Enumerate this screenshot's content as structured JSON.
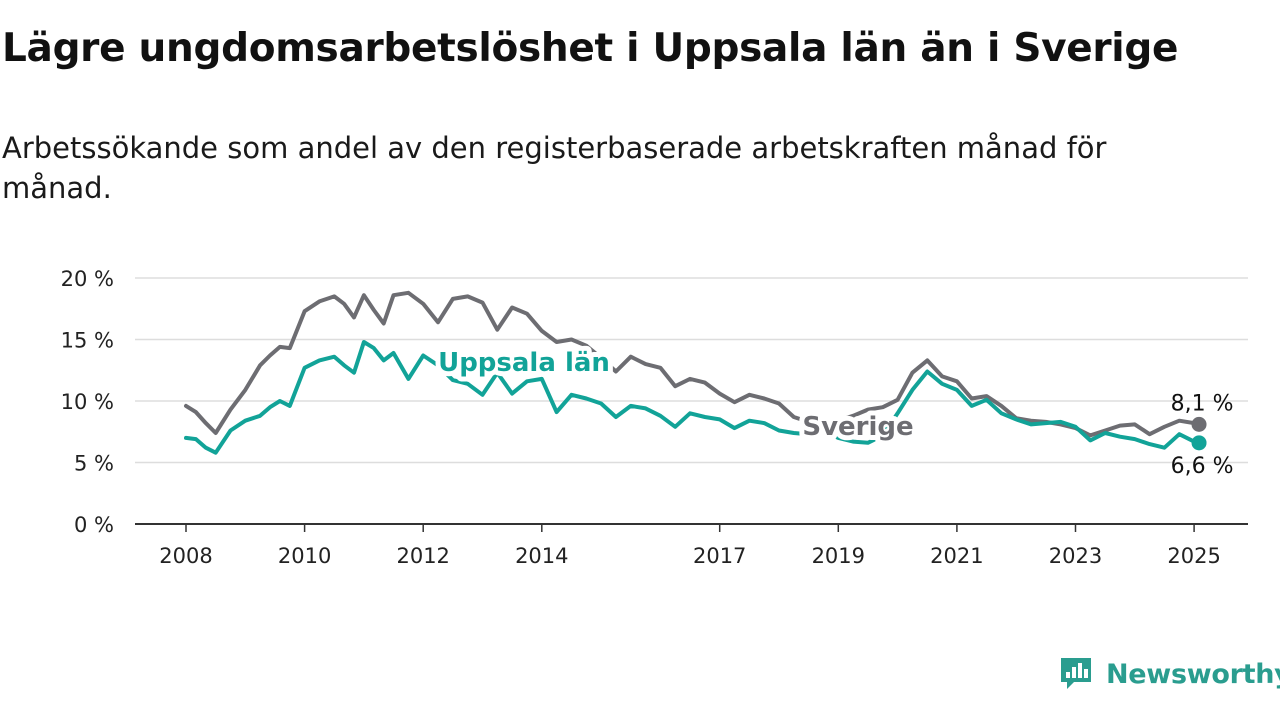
{
  "title": "Lägre ungdomsarbetslöshet i Uppsala län än i Sverige",
  "subtitle": "Arbetssökande som andel av den registerbaserade arbetskraften månad för månad.",
  "brand": {
    "name": "Newsworthy",
    "color": "#2a9d8f"
  },
  "colors": {
    "sverige": "#6d6d72",
    "uppsala": "#12a398",
    "grid": "#dddddd",
    "axis": "#333333"
  },
  "chart_data": {
    "type": "line",
    "title": "Lägre ungdomsarbetslöshet i Uppsala län än i Sverige",
    "xlabel": "",
    "ylabel": "",
    "ylim": [
      0,
      20
    ],
    "y_ticks": [
      0,
      5,
      10,
      15,
      20
    ],
    "y_tick_labels": [
      "0 %",
      "5 %",
      "10 %",
      "15 %",
      "20 %"
    ],
    "x_ticks": [
      2008,
      2010,
      2012,
      2014,
      2017,
      2019,
      2021,
      2023,
      2025
    ],
    "x_tick_labels": [
      "2008",
      "2010",
      "2012",
      "2014",
      "2017",
      "2019",
      "2021",
      "2023",
      "2025"
    ],
    "grid": true,
    "legend": "inline labels",
    "series": [
      {
        "name": "Sverige",
        "color": "#6d6d72",
        "end_label": "8,1 %",
        "x": [
          "2008-01",
          "2008-03",
          "2008-05",
          "2008-07",
          "2008-10",
          "2009-01",
          "2009-04",
          "2009-06",
          "2009-08",
          "2009-10",
          "2010-01",
          "2010-04",
          "2010-07",
          "2010-09",
          "2010-11",
          "2011-01",
          "2011-03",
          "2011-05",
          "2011-07",
          "2011-10",
          "2012-01",
          "2012-04",
          "2012-07",
          "2012-10",
          "2013-01",
          "2013-04",
          "2013-07",
          "2013-10",
          "2014-01",
          "2014-04",
          "2014-07",
          "2014-10",
          "2015-01",
          "2015-04",
          "2015-07",
          "2015-10",
          "2016-01",
          "2016-04",
          "2016-07",
          "2016-10",
          "2017-01",
          "2017-04",
          "2017-07",
          "2017-10",
          "2018-01",
          "2018-04",
          "2018-07",
          "2018-10",
          "2019-01",
          "2019-04",
          "2019-07",
          "2019-10",
          "2020-01",
          "2020-04",
          "2020-07",
          "2020-10",
          "2021-01",
          "2021-04",
          "2021-07",
          "2021-10",
          "2022-01",
          "2022-04",
          "2022-07",
          "2022-10",
          "2023-01",
          "2023-04",
          "2023-07",
          "2023-10",
          "2024-01",
          "2024-04",
          "2024-07",
          "2024-10",
          "2025-01",
          "2025-02"
        ],
        "y": [
          9.6,
          9.1,
          8.2,
          7.4,
          9.3,
          10.9,
          12.9,
          13.7,
          14.4,
          14.3,
          17.3,
          18.1,
          18.5,
          17.9,
          16.8,
          18.6,
          17.4,
          16.3,
          18.6,
          18.8,
          17.9,
          16.4,
          18.3,
          18.5,
          18.0,
          15.8,
          17.6,
          17.1,
          15.7,
          14.8,
          15.0,
          14.5,
          13.5,
          12.4,
          13.6,
          13.0,
          12.7,
          11.2,
          11.8,
          11.5,
          10.6,
          9.9,
          10.5,
          10.2,
          9.8,
          8.7,
          8.3,
          8.1,
          8.4,
          8.8,
          9.3,
          9.5,
          10.1,
          12.3,
          13.3,
          12.0,
          11.6,
          10.2,
          10.4,
          9.6,
          8.6,
          8.4,
          8.3,
          8.1,
          7.8,
          7.2,
          7.6,
          8.0,
          8.1,
          7.3,
          7.9,
          8.4,
          8.2,
          8.1
        ]
      },
      {
        "name": "Uppsala län",
        "color": "#12a398",
        "end_label": "6,6 %",
        "x": [
          "2008-01",
          "2008-03",
          "2008-05",
          "2008-07",
          "2008-10",
          "2009-01",
          "2009-04",
          "2009-06",
          "2009-08",
          "2009-10",
          "2010-01",
          "2010-04",
          "2010-07",
          "2010-09",
          "2010-11",
          "2011-01",
          "2011-03",
          "2011-05",
          "2011-07",
          "2011-10",
          "2012-01",
          "2012-04",
          "2012-07",
          "2012-10",
          "2013-01",
          "2013-04",
          "2013-07",
          "2013-10",
          "2014-01",
          "2014-04",
          "2014-07",
          "2014-10",
          "2015-01",
          "2015-04",
          "2015-07",
          "2015-10",
          "2016-01",
          "2016-04",
          "2016-07",
          "2016-10",
          "2017-01",
          "2017-04",
          "2017-07",
          "2017-10",
          "2018-01",
          "2018-04",
          "2018-07",
          "2018-10",
          "2019-01",
          "2019-04",
          "2019-07",
          "2019-10",
          "2020-01",
          "2020-04",
          "2020-07",
          "2020-10",
          "2021-01",
          "2021-04",
          "2021-07",
          "2021-10",
          "2022-01",
          "2022-04",
          "2022-07",
          "2022-10",
          "2023-01",
          "2023-04",
          "2023-07",
          "2023-10",
          "2024-01",
          "2024-04",
          "2024-07",
          "2024-10",
          "2025-01",
          "2025-02"
        ],
        "y": [
          7.0,
          6.9,
          6.2,
          5.8,
          7.6,
          8.4,
          8.8,
          9.5,
          10.0,
          9.6,
          12.7,
          13.3,
          13.6,
          12.9,
          12.3,
          14.8,
          14.3,
          13.3,
          13.9,
          11.8,
          13.7,
          12.9,
          11.7,
          11.4,
          10.5,
          12.3,
          10.6,
          11.6,
          11.8,
          9.1,
          10.5,
          10.2,
          9.8,
          8.7,
          9.6,
          9.4,
          8.8,
          7.9,
          9.0,
          8.7,
          8.5,
          7.8,
          8.4,
          8.2,
          7.6,
          7.4,
          7.3,
          7.5,
          7.0,
          6.7,
          6.6,
          7.2,
          9.0,
          10.9,
          12.4,
          11.4,
          10.9,
          9.6,
          10.1,
          9.0,
          8.5,
          8.1,
          8.2,
          8.3,
          7.9,
          6.8,
          7.4,
          7.1,
          6.9,
          6.5,
          6.2,
          7.3,
          6.7,
          6.6
        ]
      }
    ]
  }
}
